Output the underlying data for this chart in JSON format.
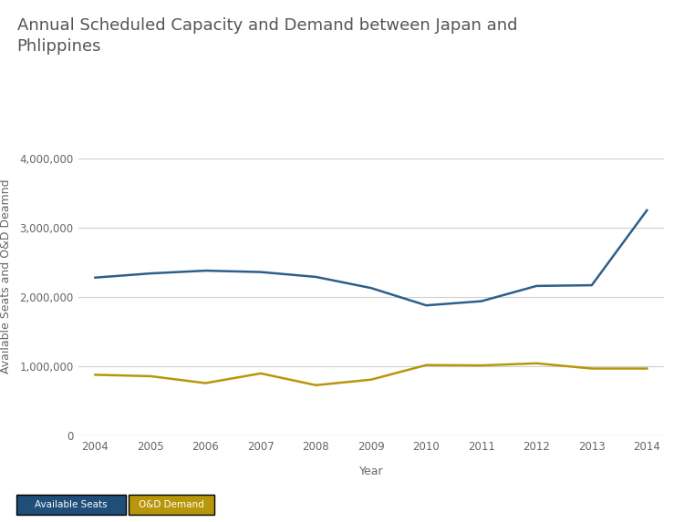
{
  "title_line1": "Annual Scheduled Capacity and Demand between Japan and",
  "title_line2": "Phlippines",
  "xlabel": "Year",
  "ylabel": "Available Seats and O&D Deamnd",
  "years": [
    2004,
    2005,
    2006,
    2007,
    2008,
    2009,
    2010,
    2011,
    2012,
    2013,
    2014
  ],
  "available_seats": [
    2280000,
    2340000,
    2380000,
    2360000,
    2290000,
    2130000,
    1880000,
    1940000,
    2160000,
    2170000,
    3250000
  ],
  "od_demand": [
    880000,
    860000,
    760000,
    900000,
    730000,
    810000,
    1020000,
    1015000,
    1045000,
    970000,
    970000
  ],
  "seats_color": "#2e5f8a",
  "demand_color": "#b8960a",
  "legend_seats_bg": "#1f4e79",
  "legend_demand_bg": "#b8960a",
  "legend_seats_label": "Available Seats",
  "legend_demand_label": "O&D Demand",
  "ylim": [
    0,
    4600000
  ],
  "yticks": [
    0,
    1000000,
    2000000,
    3000000,
    4000000
  ],
  "title_fontsize": 13,
  "axis_label_fontsize": 9,
  "tick_fontsize": 8.5,
  "header_bg": "#e8e8e8",
  "chart_bg": "#ffffff",
  "grid_color": "#d0d0d0",
  "line_width": 1.8
}
